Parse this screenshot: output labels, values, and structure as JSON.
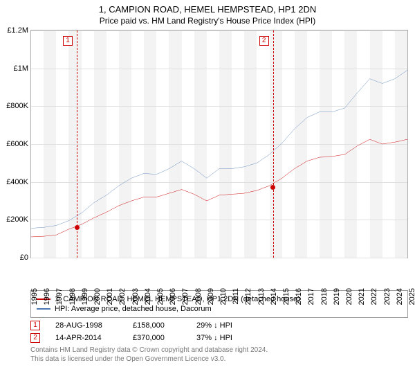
{
  "title": "1, CAMPION ROAD, HEMEL HEMPSTEAD, HP1 2DN",
  "subtitle": "Price paid vs. HM Land Registry's House Price Index (HPI)",
  "chart": {
    "type": "line",
    "background_color": "#ffffff",
    "band_color": "#f3f3f3",
    "grid_color": "#e0e0e0",
    "border_color": "#aaaaaa",
    "y": {
      "min": 0,
      "max": 1200000,
      "ticks": [
        0,
        200000,
        400000,
        600000,
        800000,
        1000000,
        1200000
      ],
      "labels": [
        "£0",
        "£200K",
        "£400K",
        "£600K",
        "£800K",
        "£1M",
        "£1.2M"
      ],
      "fontsize": 11
    },
    "x": {
      "years": [
        1995,
        1996,
        1997,
        1998,
        1999,
        2000,
        2001,
        2002,
        2003,
        2004,
        2005,
        2006,
        2007,
        2008,
        2009,
        2010,
        2011,
        2012,
        2013,
        2014,
        2015,
        2016,
        2017,
        2018,
        2019,
        2020,
        2021,
        2022,
        2023,
        2024,
        2025
      ],
      "fontsize": 11
    },
    "series": [
      {
        "name": "property",
        "label": "1, CAMPION ROAD, HEMEL HEMPSTEAD, HP1 2DN (detached house)",
        "color": "#cc0000",
        "line_width": 1.6,
        "values_by_year": {
          "1995": 110000,
          "1996": 113000,
          "1997": 120000,
          "1998": 150000,
          "1999": 175000,
          "2000": 210000,
          "2001": 240000,
          "2002": 275000,
          "2003": 300000,
          "2004": 320000,
          "2005": 320000,
          "2006": 340000,
          "2007": 360000,
          "2008": 335000,
          "2009": 300000,
          "2010": 330000,
          "2011": 335000,
          "2012": 340000,
          "2013": 355000,
          "2014": 380000,
          "2015": 420000,
          "2016": 470000,
          "2017": 510000,
          "2018": 530000,
          "2019": 535000,
          "2020": 545000,
          "2021": 590000,
          "2022": 625000,
          "2023": 600000,
          "2024": 610000,
          "2025": 625000
        }
      },
      {
        "name": "hpi",
        "label": "HPI: Average price, detached house, Dacorum",
        "color": "#4a78b5",
        "line_width": 1.4,
        "values_by_year": {
          "1995": 155000,
          "1996": 160000,
          "1997": 170000,
          "1998": 195000,
          "1999": 235000,
          "2000": 290000,
          "2001": 330000,
          "2002": 380000,
          "2003": 420000,
          "2004": 445000,
          "2005": 440000,
          "2006": 470000,
          "2007": 510000,
          "2008": 470000,
          "2009": 420000,
          "2010": 470000,
          "2011": 470000,
          "2012": 480000,
          "2013": 500000,
          "2014": 545000,
          "2015": 605000,
          "2016": 680000,
          "2017": 740000,
          "2018": 770000,
          "2019": 770000,
          "2020": 790000,
          "2021": 870000,
          "2022": 945000,
          "2023": 920000,
          "2024": 945000,
          "2025": 990000
        }
      }
    ],
    "sale_markers": [
      {
        "n": "1",
        "year": 1998.64,
        "price": 158000,
        "color": "#cc0000"
      },
      {
        "n": "2",
        "year": 2014.28,
        "price": 370000,
        "color": "#cc0000"
      }
    ]
  },
  "legend": {
    "items": [
      {
        "color": "#cc0000",
        "label": "1, CAMPION ROAD, HEMEL HEMPSTEAD, HP1 2DN (detached house)"
      },
      {
        "color": "#4a78b5",
        "label": "HPI: Average price, detached house, Dacorum"
      }
    ]
  },
  "sales": [
    {
      "n": "1",
      "date": "28-AUG-1998",
      "price": "£158,000",
      "delta": "29% ↓ HPI",
      "color": "#cc0000"
    },
    {
      "n": "2",
      "date": "14-APR-2014",
      "price": "£370,000",
      "delta": "37% ↓ HPI",
      "color": "#cc0000"
    }
  ],
  "footer": {
    "line1": "Contains HM Land Registry data © Crown copyright and database right 2024.",
    "line2": "This data is licensed under the Open Government Licence v3.0."
  }
}
